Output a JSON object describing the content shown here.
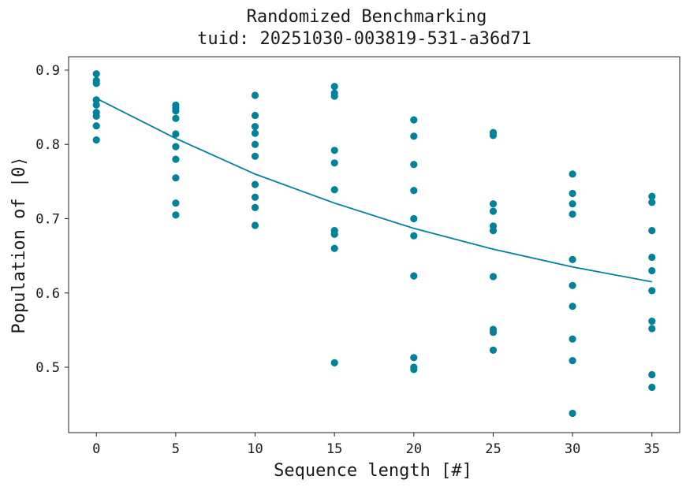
{
  "chart_data": {
    "type": "scatter",
    "title": "Randomized Benchmarking",
    "subtitle": "tuid: 20251030-003819-531-a36d71",
    "xlabel": "Sequence length [#]",
    "ylabel": "Population of |0⟩",
    "xlim": [
      -1.75,
      36.75
    ],
    "ylim": [
      0.412,
      0.918
    ],
    "xticks": [
      0,
      5,
      10,
      15,
      20,
      25,
      30,
      35
    ],
    "yticks": [
      0.5,
      0.6,
      0.7,
      0.8,
      0.9
    ],
    "xtick_labels": [
      "0",
      "5",
      "10",
      "15",
      "20",
      "25",
      "30",
      "35"
    ],
    "ytick_labels": [
      "0.5",
      "0.6",
      "0.7",
      "0.8",
      "0.9"
    ],
    "grid": false,
    "color": "#00829a",
    "series": [
      {
        "type": "scatter",
        "points": [
          {
            "x": 0,
            "y": 0.895
          },
          {
            "x": 0,
            "y": 0.886
          },
          {
            "x": 0,
            "y": 0.882
          },
          {
            "x": 0,
            "y": 0.86
          },
          {
            "x": 0,
            "y": 0.853
          },
          {
            "x": 0,
            "y": 0.843
          },
          {
            "x": 0,
            "y": 0.838
          },
          {
            "x": 0,
            "y": 0.825
          },
          {
            "x": 0,
            "y": 0.806
          },
          {
            "x": 5,
            "y": 0.853
          },
          {
            "x": 5,
            "y": 0.849
          },
          {
            "x": 5,
            "y": 0.845
          },
          {
            "x": 5,
            "y": 0.835
          },
          {
            "x": 5,
            "y": 0.814
          },
          {
            "x": 5,
            "y": 0.797
          },
          {
            "x": 5,
            "y": 0.78
          },
          {
            "x": 5,
            "y": 0.755
          },
          {
            "x": 5,
            "y": 0.721
          },
          {
            "x": 5,
            "y": 0.705
          },
          {
            "x": 10,
            "y": 0.866
          },
          {
            "x": 10,
            "y": 0.839
          },
          {
            "x": 10,
            "y": 0.824
          },
          {
            "x": 10,
            "y": 0.815
          },
          {
            "x": 10,
            "y": 0.8
          },
          {
            "x": 10,
            "y": 0.784
          },
          {
            "x": 10,
            "y": 0.746
          },
          {
            "x": 10,
            "y": 0.729
          },
          {
            "x": 10,
            "y": 0.715
          },
          {
            "x": 10,
            "y": 0.691
          },
          {
            "x": 15,
            "y": 0.878
          },
          {
            "x": 15,
            "y": 0.869
          },
          {
            "x": 15,
            "y": 0.865
          },
          {
            "x": 15,
            "y": 0.792
          },
          {
            "x": 15,
            "y": 0.775
          },
          {
            "x": 15,
            "y": 0.739
          },
          {
            "x": 15,
            "y": 0.684
          },
          {
            "x": 15,
            "y": 0.679
          },
          {
            "x": 15,
            "y": 0.66
          },
          {
            "x": 15,
            "y": 0.506
          },
          {
            "x": 20,
            "y": 0.833
          },
          {
            "x": 20,
            "y": 0.811
          },
          {
            "x": 20,
            "y": 0.773
          },
          {
            "x": 20,
            "y": 0.738
          },
          {
            "x": 20,
            "y": 0.7
          },
          {
            "x": 20,
            "y": 0.677
          },
          {
            "x": 20,
            "y": 0.623
          },
          {
            "x": 20,
            "y": 0.513
          },
          {
            "x": 20,
            "y": 0.5
          },
          {
            "x": 20,
            "y": 0.497
          },
          {
            "x": 25,
            "y": 0.816
          },
          {
            "x": 25,
            "y": 0.812
          },
          {
            "x": 25,
            "y": 0.72
          },
          {
            "x": 25,
            "y": 0.71
          },
          {
            "x": 25,
            "y": 0.69
          },
          {
            "x": 25,
            "y": 0.684
          },
          {
            "x": 25,
            "y": 0.622
          },
          {
            "x": 25,
            "y": 0.551
          },
          {
            "x": 25,
            "y": 0.547
          },
          {
            "x": 25,
            "y": 0.523
          },
          {
            "x": 30,
            "y": 0.76
          },
          {
            "x": 30,
            "y": 0.734
          },
          {
            "x": 30,
            "y": 0.72
          },
          {
            "x": 30,
            "y": 0.706
          },
          {
            "x": 30,
            "y": 0.645
          },
          {
            "x": 30,
            "y": 0.61
          },
          {
            "x": 30,
            "y": 0.582
          },
          {
            "x": 30,
            "y": 0.538
          },
          {
            "x": 30,
            "y": 0.509
          },
          {
            "x": 30,
            "y": 0.438
          },
          {
            "x": 35,
            "y": 0.73
          },
          {
            "x": 35,
            "y": 0.722
          },
          {
            "x": 35,
            "y": 0.684
          },
          {
            "x": 35,
            "y": 0.648
          },
          {
            "x": 35,
            "y": 0.63
          },
          {
            "x": 35,
            "y": 0.603
          },
          {
            "x": 35,
            "y": 0.562
          },
          {
            "x": 35,
            "y": 0.552
          },
          {
            "x": 35,
            "y": 0.49
          },
          {
            "x": 35,
            "y": 0.473
          }
        ]
      },
      {
        "type": "line",
        "x": [
          0,
          5,
          10,
          15,
          20,
          25,
          30,
          35
        ],
        "values": [
          0.862,
          0.808,
          0.76,
          0.721,
          0.687,
          0.659,
          0.635,
          0.615
        ]
      }
    ]
  }
}
